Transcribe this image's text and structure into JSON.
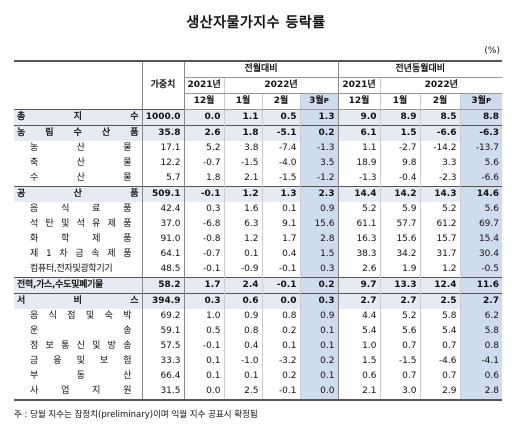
{
  "title": "생산자물가지수 등락률",
  "unit": "(%)",
  "header": {
    "weight": "가중치",
    "mom": "전월대비",
    "yoy": "전년동월대비",
    "y2021": "2021년",
    "y2022": "2022년",
    "months": [
      "12월",
      "1월",
      "2월",
      "3월"
    ],
    "p_mark": "P"
  },
  "rows": [
    {
      "name": "총 지 수",
      "w": "1000.0",
      "v": [
        "0.0",
        "1.1",
        "0.5",
        "1.3",
        "9.0",
        "8.9",
        "8.5",
        "8.8"
      ]
    },
    {
      "name": "농 림 수 산 품",
      "w": "35.8",
      "v": [
        "2.6",
        "1.8",
        "-5.1",
        "0.2",
        "6.1",
        "1.5",
        "-6.6",
        "-6.3"
      ]
    },
    {
      "name": "농 산 물",
      "w": "17.1",
      "v": [
        "5.2",
        "3.8",
        "-7.4",
        "-1.3",
        "1.1",
        "-2.7",
        "-14.2",
        "-13.7"
      ]
    },
    {
      "name": "축 산 물",
      "w": "12.2",
      "v": [
        "-0.7",
        "-1.5",
        "-4.0",
        "3.5",
        "18.9",
        "9.8",
        "3.3",
        "5.6"
      ]
    },
    {
      "name": "수 산 물",
      "w": "5.7",
      "v": [
        "1.8",
        "2.1",
        "-1.5",
        "-1.2",
        "-1.3",
        "-0.4",
        "-2.3",
        "-6.6"
      ]
    },
    {
      "name": "공 산 품",
      "w": "509.1",
      "v": [
        "-0.1",
        "1.2",
        "1.3",
        "2.3",
        "14.4",
        "14.2",
        "14.3",
        "14.6"
      ]
    },
    {
      "name": "음 식 료 품",
      "w": "42.4",
      "v": [
        "0.3",
        "1.6",
        "0.1",
        "0.9",
        "5.2",
        "5.9",
        "5.2",
        "5.6"
      ]
    },
    {
      "name": "석 탄 및 석 유 제 품",
      "w": "37.0",
      "v": [
        "-6.8",
        "6.3",
        "9.1",
        "15.6",
        "61.1",
        "57.7",
        "61.2",
        "69.7"
      ]
    },
    {
      "name": "화 학 제 품",
      "w": "91.0",
      "v": [
        "-0.8",
        "1.2",
        "1.7",
        "2.8",
        "16.3",
        "15.6",
        "15.7",
        "15.4"
      ]
    },
    {
      "name": "제 1 차 금 속 제 품",
      "w": "64.1",
      "v": [
        "-0.7",
        "0.1",
        "0.4",
        "1.5",
        "38.3",
        "34.2",
        "31.7",
        "30.4"
      ]
    },
    {
      "name": "컴퓨터,전자및광학기기",
      "w": "48.5",
      "v": [
        "-0.1",
        "-0.9",
        "-0.1",
        "0.3",
        "2.6",
        "1.9",
        "1.2",
        "-0.5"
      ]
    },
    {
      "name": "전력,가스,수도및폐기물",
      "w": "58.2",
      "v": [
        "1.7",
        "2.4",
        "-0.1",
        "0.2",
        "9.7",
        "13.3",
        "12.4",
        "11.6"
      ]
    },
    {
      "name": "서 비 스",
      "w": "394.9",
      "v": [
        "0.3",
        "0.6",
        "0.0",
        "0.3",
        "2.7",
        "2.7",
        "2.5",
        "2.7"
      ]
    },
    {
      "name": "음 식 점 및 숙 박",
      "w": "69.2",
      "v": [
        "1.0",
        "0.9",
        "0.8",
        "0.9",
        "4.4",
        "5.2",
        "5.8",
        "6.2"
      ]
    },
    {
      "name": "운 송",
      "w": "59.1",
      "v": [
        "0.5",
        "0.8",
        "0.2",
        "0.1",
        "5.4",
        "5.6",
        "5.4",
        "5.8"
      ]
    },
    {
      "name": "정 보 통 신 및 방 송",
      "w": "57.5",
      "v": [
        "-0.1",
        "0.4",
        "0.1",
        "0.1",
        "1.0",
        "0.7",
        "0.7",
        "0.8"
      ]
    },
    {
      "name": "금 융 및 보 험",
      "w": "33.3",
      "v": [
        "0.1",
        "-1.0",
        "-3.2",
        "0.2",
        "1.5",
        "-1.5",
        "-4.6",
        "-4.1"
      ]
    },
    {
      "name": "부 동 산",
      "w": "66.4",
      "v": [
        "0.1",
        "0.1",
        "0.2",
        "0.1",
        "0.6",
        "0.7",
        "0.7",
        "0.6"
      ]
    },
    {
      "name": "사 업 지 원",
      "w": "31.5",
      "v": [
        "0.0",
        "2.5",
        "-0.1",
        "0.0",
        "2.1",
        "3.0",
        "2.9",
        "2.8"
      ]
    }
  ],
  "footnote": "주 : 당월 지수는 잠정치(preliminary)이며 익월 지수 공표시 확정됨",
  "colors": {
    "section_bg": "#e6eaf3",
    "highlight_bg": "#cfdcee"
  }
}
